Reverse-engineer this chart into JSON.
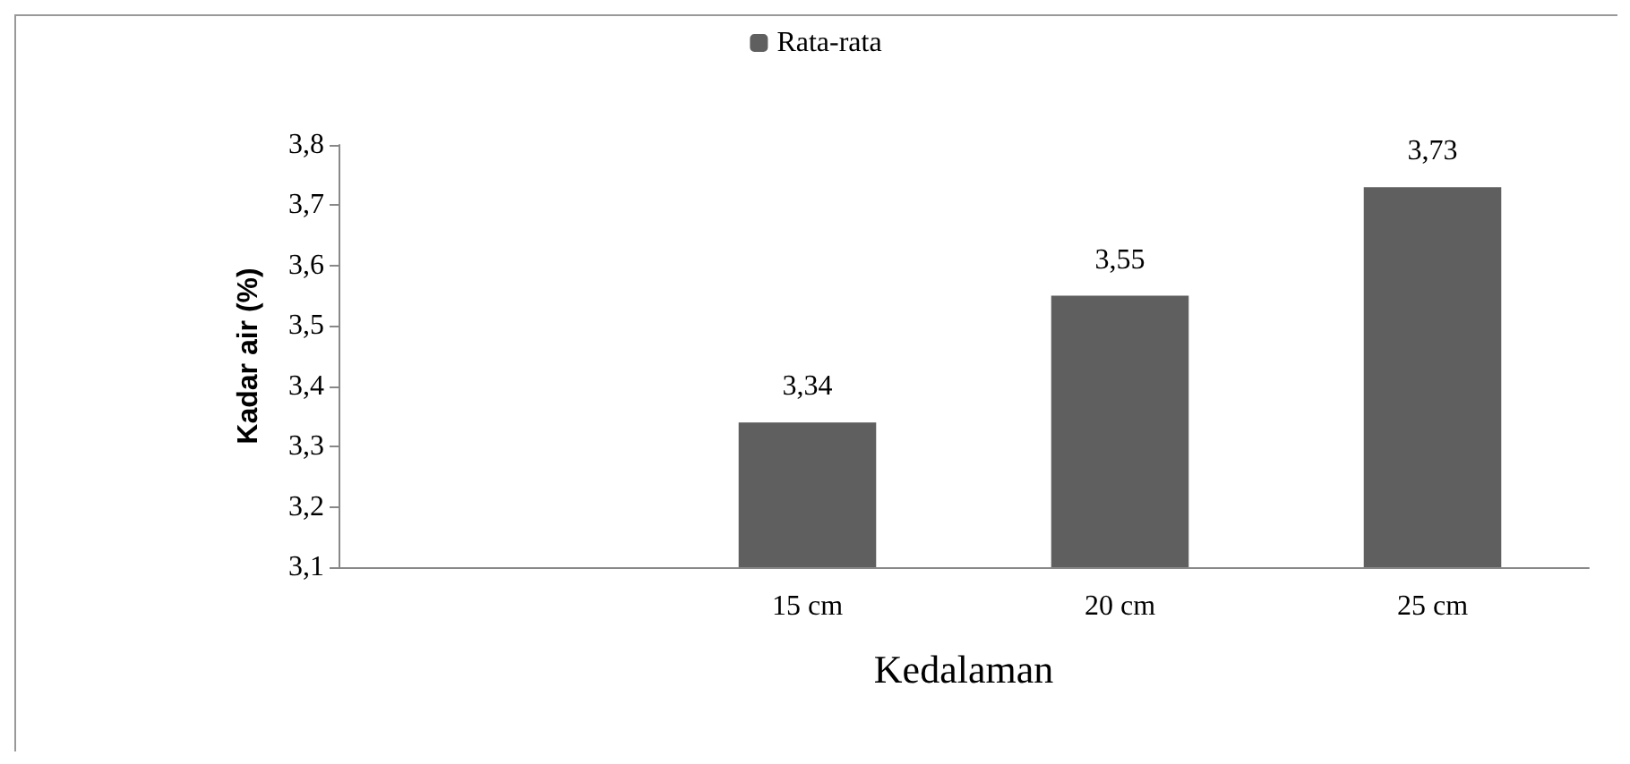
{
  "chart_data": {
    "type": "bar",
    "xlabel": "Kedalaman",
    "ylabel": "Kadar air (%)",
    "categories": [
      null,
      "15 cm",
      "20 cm",
      "25 cm"
    ],
    "series": [
      {
        "name": "Rata-rata",
        "color": "#5f5f5f",
        "values": [
          null,
          3.34,
          3.55,
          3.73
        ],
        "value_labels": [
          null,
          "3,34",
          "3,55",
          "3,73"
        ]
      }
    ],
    "ylim": [
      3.1,
      3.8
    ],
    "yticks": [
      {
        "value": 3.1,
        "label": "3,1"
      },
      {
        "value": 3.2,
        "label": "3,2"
      },
      {
        "value": 3.3,
        "label": "3,3"
      },
      {
        "value": 3.4,
        "label": "3,4"
      },
      {
        "value": 3.5,
        "label": "3,5"
      },
      {
        "value": 3.6,
        "label": "3,6"
      },
      {
        "value": 3.7,
        "label": "3,7"
      },
      {
        "value": 3.8,
        "label": "3,8"
      }
    ],
    "legend": "top",
    "grid": false
  }
}
